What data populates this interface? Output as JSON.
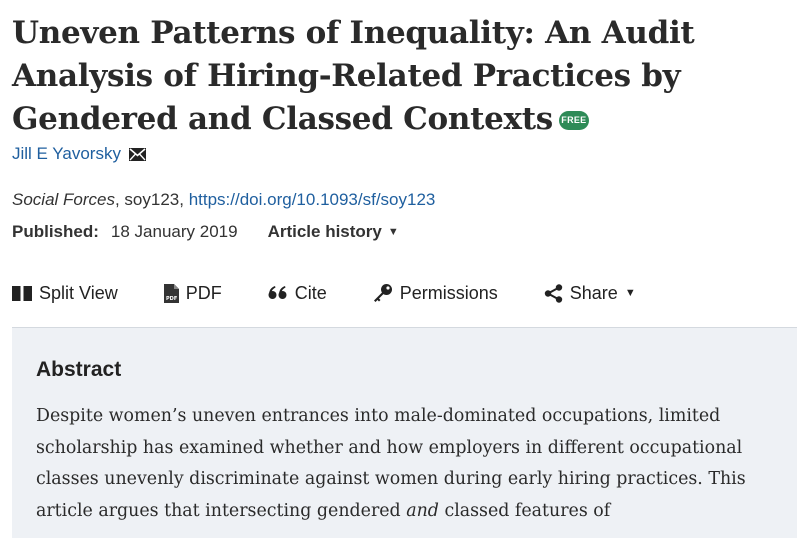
{
  "article": {
    "title": "Uneven Patterns of Inequality: An Audit Analysis of Hiring-Related Practices by Gendered and Classed Contexts",
    "free_badge": "FREE",
    "author": "Jill E Yavorsky",
    "journal": "Social Forces",
    "article_id": ", soy123, ",
    "doi": "https://doi.org/10.1093/sf/soy123",
    "published_label": "Published:",
    "published_date": "18 January 2019",
    "history_label": "Article history"
  },
  "toolbar": {
    "split_view": "Split View",
    "pdf": "PDF",
    "cite": "Cite",
    "permissions": "Permissions",
    "share": "Share"
  },
  "abstract": {
    "heading": "Abstract",
    "text_part1": "Despite women’s uneven entrances into male-dominated occupations, limited scholarship has examined whether and how employers in different occupational classes unevenly discriminate against women during early hiring practices. This article argues that intersecting gendered ",
    "text_emphasis": "and",
    "text_part2": " classed features of"
  },
  "colors": {
    "link": "#1f5f9f",
    "badge_green": "#2e8b57",
    "abstract_bg": "#eef1f5"
  },
  "icons": [
    "mail-icon",
    "split-view-icon",
    "pdf-icon",
    "quote-icon",
    "key-icon",
    "share-icon",
    "caret-down-icon"
  ]
}
